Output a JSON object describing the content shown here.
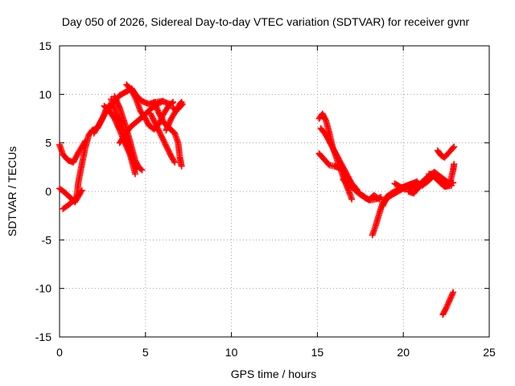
{
  "chart_data": {
    "type": "scatter",
    "title": "Day 050 of 2026, Sidereal Day-to-day VTEC variation (SDTVAR) for receiver gvnr",
    "xlabel": "GPS time / hours",
    "ylabel": "SDTVAR / TECUs",
    "xlim": [
      0,
      25
    ],
    "ylim": [
      -15,
      15
    ],
    "x_ticks": [
      "0",
      "5",
      "10",
      "15",
      "20",
      "25"
    ],
    "y_ticks": [
      "15",
      "10",
      "5",
      "0",
      "-5",
      "-10",
      "-15"
    ],
    "grid": true,
    "marker": "plus",
    "marker_color": "#ff0000",
    "tracks": [
      {
        "points": [
          [
            0.0,
            0.3
          ],
          [
            0.3,
            -0.1
          ],
          [
            0.6,
            -0.6
          ],
          [
            0.9,
            -1.1
          ],
          [
            1.2,
            -0.2
          ]
        ]
      },
      {
        "points": [
          [
            0.2,
            -1.8
          ],
          [
            0.6,
            -1.3
          ],
          [
            1.0,
            -0.6
          ],
          [
            1.3,
            0.1
          ]
        ]
      },
      {
        "points": [
          [
            0.0,
            4.8
          ],
          [
            0.2,
            3.8
          ],
          [
            0.5,
            3.2
          ],
          [
            0.8,
            3.0
          ],
          [
            1.1,
            4.0
          ],
          [
            1.3,
            4.6
          ],
          [
            1.5,
            5.2
          ]
        ]
      },
      {
        "points": [
          [
            1.0,
            -0.5
          ],
          [
            1.1,
            1.0
          ],
          [
            1.3,
            2.8
          ],
          [
            1.5,
            4.5
          ],
          [
            1.7,
            5.8
          ],
          [
            1.9,
            6.3
          ],
          [
            2.2,
            6.5
          ],
          [
            2.5,
            7.5
          ],
          [
            2.7,
            8.4
          ],
          [
            2.9,
            8.9
          ]
        ]
      },
      {
        "points": [
          [
            2.0,
            6.0
          ],
          [
            2.3,
            6.9
          ],
          [
            2.6,
            7.9
          ],
          [
            2.9,
            8.6
          ],
          [
            3.2,
            9.3
          ],
          [
            3.5,
            9.9
          ],
          [
            3.8,
            10.2
          ],
          [
            4.0,
            10.4
          ],
          [
            4.2,
            10.6
          ],
          [
            4.5,
            9.8
          ],
          [
            4.8,
            9.3
          ],
          [
            5.2,
            9.0
          ],
          [
            5.6,
            9.2
          ],
          [
            6.0,
            9.3
          ],
          [
            6.4,
            9.0
          ]
        ]
      },
      {
        "points": [
          [
            2.6,
            8.8
          ],
          [
            2.9,
            8.3
          ],
          [
            3.2,
            7.5
          ],
          [
            3.5,
            6.3
          ],
          [
            3.8,
            5.0
          ],
          [
            4.1,
            3.8
          ],
          [
            4.3,
            2.5
          ],
          [
            4.4,
            1.8
          ]
        ]
      },
      {
        "points": [
          [
            3.0,
            9.5
          ],
          [
            3.3,
            8.0
          ],
          [
            3.6,
            6.8
          ],
          [
            3.9,
            5.5
          ],
          [
            4.1,
            4.2
          ],
          [
            4.3,
            3.0
          ],
          [
            4.5,
            2.3
          ]
        ]
      },
      {
        "points": [
          [
            3.2,
            9.8
          ],
          [
            3.5,
            8.6
          ],
          [
            3.8,
            7.0
          ],
          [
            4.0,
            5.8
          ],
          [
            4.2,
            4.5
          ],
          [
            4.4,
            3.2
          ],
          [
            4.6,
            2.5
          ],
          [
            4.8,
            2.2
          ]
        ]
      },
      {
        "points": [
          [
            3.5,
            5.0
          ],
          [
            3.8,
            5.8
          ],
          [
            4.1,
            6.6
          ],
          [
            4.5,
            7.2
          ],
          [
            4.9,
            7.8
          ],
          [
            5.3,
            8.5
          ],
          [
            5.7,
            9.0
          ],
          [
            6.0,
            9.3
          ]
        ]
      },
      {
        "points": [
          [
            3.9,
            11.0
          ],
          [
            4.2,
            10.4
          ],
          [
            4.5,
            9.3
          ],
          [
            4.7,
            8.3
          ],
          [
            5.0,
            7.5
          ],
          [
            5.2,
            6.8
          ],
          [
            5.5,
            6.4
          ],
          [
            5.8,
            7.0
          ],
          [
            6.0,
            7.8
          ],
          [
            6.3,
            8.7
          ],
          [
            6.6,
            9.2
          ]
        ]
      },
      {
        "points": [
          [
            5.3,
            8.0
          ],
          [
            5.6,
            6.9
          ],
          [
            5.9,
            5.8
          ],
          [
            6.2,
            4.7
          ],
          [
            6.5,
            3.6
          ],
          [
            6.7,
            3.0
          ]
        ]
      },
      {
        "points": [
          [
            5.5,
            9.2
          ],
          [
            5.8,
            8.0
          ],
          [
            6.1,
            7.0
          ],
          [
            6.4,
            6.5
          ],
          [
            6.7,
            6.0
          ],
          [
            6.9,
            5.0
          ],
          [
            7.0,
            3.5
          ],
          [
            7.1,
            2.6
          ]
        ]
      },
      {
        "points": [
          [
            6.2,
            6.3
          ],
          [
            6.5,
            7.5
          ],
          [
            6.8,
            8.4
          ],
          [
            7.0,
            9.0
          ],
          [
            7.1,
            9.2
          ]
        ]
      },
      {
        "points": [
          [
            6.6,
            8.6
          ],
          [
            6.8,
            8.3
          ],
          [
            7.0,
            8.7
          ],
          [
            7.15,
            9.0
          ]
        ]
      },
      {
        "points": [
          [
            15.1,
            7.5
          ],
          [
            15.3,
            8.0
          ],
          [
            15.5,
            7.3
          ],
          [
            15.7,
            6.0
          ],
          [
            15.9,
            4.5
          ],
          [
            16.1,
            3.5
          ],
          [
            16.3,
            2.5
          ],
          [
            16.5,
            1.5
          ],
          [
            16.7,
            0.6
          ],
          [
            16.9,
            -0.3
          ],
          [
            17.0,
            -0.8
          ]
        ]
      },
      {
        "points": [
          [
            15.2,
            6.5
          ],
          [
            15.5,
            5.8
          ],
          [
            15.8,
            4.8
          ],
          [
            16.1,
            3.8
          ],
          [
            16.4,
            2.8
          ],
          [
            16.7,
            1.8
          ],
          [
            17.0,
            0.8
          ],
          [
            17.3,
            0.2
          ]
        ]
      },
      {
        "points": [
          [
            15.1,
            3.9
          ],
          [
            15.4,
            3.3
          ],
          [
            15.7,
            2.7
          ],
          [
            16.0,
            2.6
          ],
          [
            16.3,
            2.4
          ],
          [
            16.6,
            1.8
          ],
          [
            16.9,
            1.0
          ],
          [
            17.2,
            0.3
          ],
          [
            17.5,
            -0.3
          ],
          [
            17.8,
            -0.7
          ],
          [
            18.1,
            -0.9
          ],
          [
            18.4,
            -0.8
          ],
          [
            18.7,
            -0.6
          ]
        ]
      },
      {
        "points": [
          [
            16.5,
            1.2
          ],
          [
            16.8,
            0.8
          ],
          [
            17.1,
            0.3
          ],
          [
            17.4,
            -0.2
          ],
          [
            17.7,
            -0.5
          ],
          [
            18.0,
            -0.9
          ],
          [
            18.3,
            -0.4
          ],
          [
            18.6,
            -0.8
          ]
        ]
      },
      {
        "points": [
          [
            18.2,
            -4.5
          ],
          [
            18.4,
            -3.5
          ],
          [
            18.6,
            -2.3
          ],
          [
            18.8,
            -1.2
          ],
          [
            19.0,
            -0.6
          ],
          [
            19.3,
            -0.2
          ],
          [
            19.6,
            0.1
          ],
          [
            19.9,
            0.4
          ],
          [
            20.2,
            0.6
          ],
          [
            20.5,
            0.8
          ],
          [
            20.8,
            1.0
          ]
        ]
      },
      {
        "points": [
          [
            18.8,
            -1.5
          ],
          [
            19.0,
            -0.8
          ],
          [
            19.3,
            -0.4
          ],
          [
            19.6,
            -0.1
          ],
          [
            19.9,
            0.2
          ],
          [
            20.2,
            0.5
          ],
          [
            20.5,
            0.7
          ],
          [
            20.8,
            0.9
          ],
          [
            21.1,
            0.6
          ],
          [
            21.4,
            1.0
          ],
          [
            21.7,
            1.5
          ]
        ]
      },
      {
        "points": [
          [
            19.5,
            0.8
          ],
          [
            19.8,
            0.5
          ],
          [
            20.1,
            0.2
          ],
          [
            20.4,
            0.3
          ],
          [
            20.7,
            0.6
          ],
          [
            21.0,
            0.8
          ],
          [
            21.3,
            1.3
          ],
          [
            21.6,
            1.8
          ],
          [
            21.9,
            1.5
          ],
          [
            22.2,
            0.8
          ],
          [
            22.5,
            0.5
          ],
          [
            22.8,
            0.6
          ]
        ]
      },
      {
        "points": [
          [
            20.3,
            0.0
          ],
          [
            20.6,
            -0.2
          ],
          [
            20.9,
            0.4
          ],
          [
            21.2,
            1.0
          ],
          [
            21.5,
            1.6
          ],
          [
            21.8,
            2.0
          ],
          [
            22.1,
            1.6
          ],
          [
            22.4,
            1.2
          ],
          [
            22.7,
            0.8
          ],
          [
            22.9,
            0.9
          ]
        ]
      },
      {
        "points": [
          [
            21.5,
            1.8
          ],
          [
            21.8,
            1.5
          ],
          [
            22.1,
            1.0
          ],
          [
            22.4,
            0.5
          ],
          [
            22.7,
            0.7
          ],
          [
            22.9,
            2.2
          ],
          [
            22.95,
            2.8
          ]
        ]
      },
      {
        "points": [
          [
            22.0,
            4.2
          ],
          [
            22.2,
            3.7
          ],
          [
            22.4,
            3.5
          ],
          [
            22.6,
            3.9
          ],
          [
            22.8,
            4.3
          ],
          [
            22.95,
            4.6
          ]
        ]
      },
      {
        "points": [
          [
            22.3,
            -12.7
          ],
          [
            22.5,
            -12.0
          ],
          [
            22.7,
            -11.2
          ],
          [
            22.9,
            -10.4
          ]
        ]
      }
    ]
  }
}
